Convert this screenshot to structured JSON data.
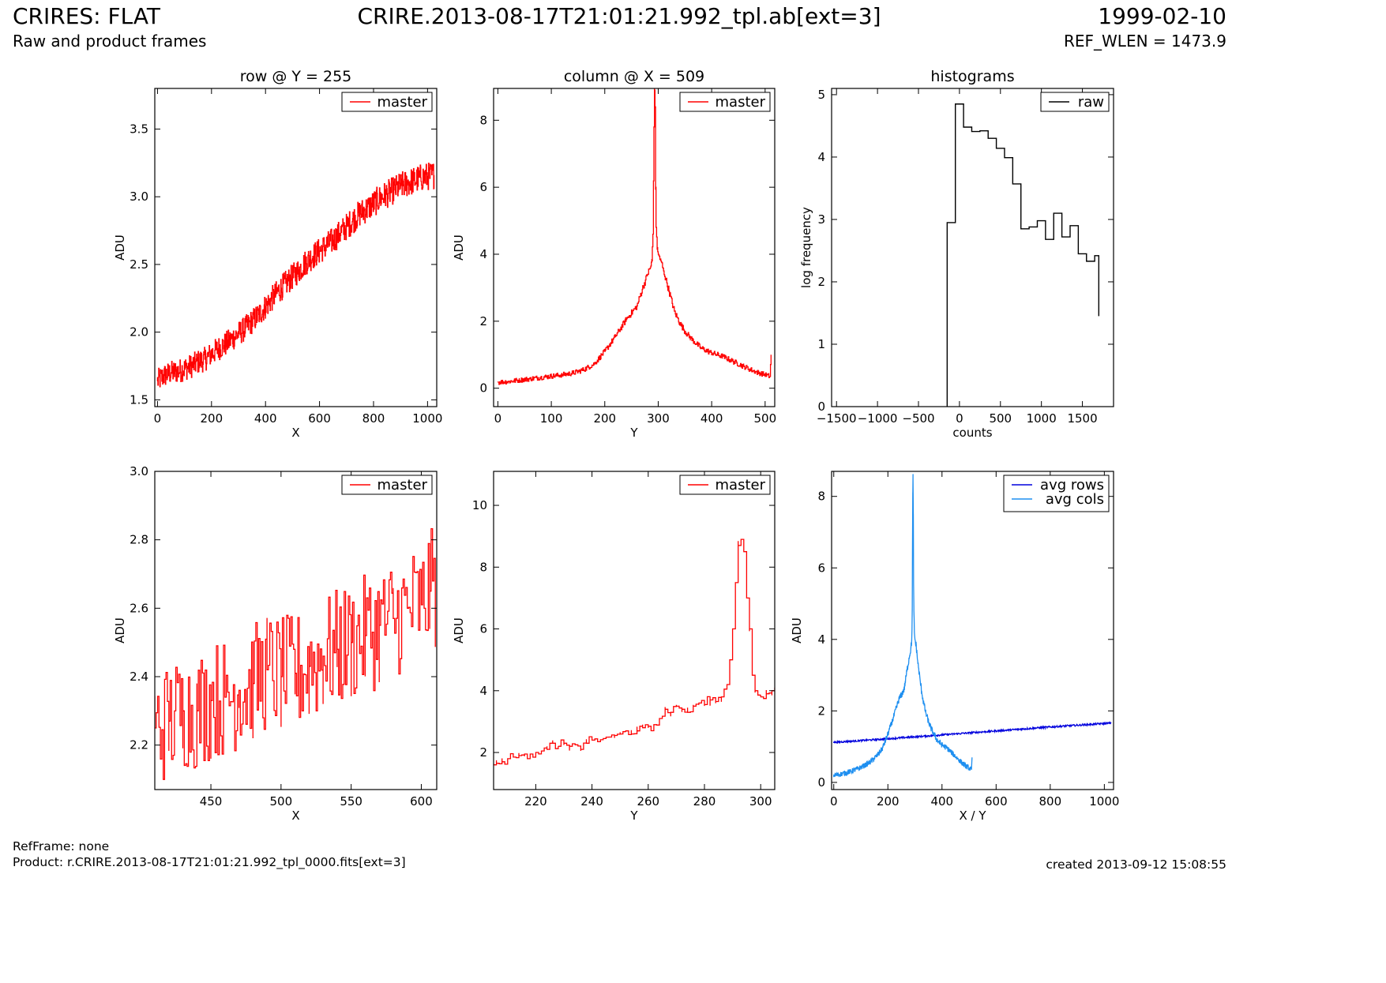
{
  "header": {
    "left_title": "CRIRES: FLAT",
    "left_subtitle": "Raw and product frames",
    "center_title": "CRIRE.2013-08-17T21:01:21.992_tpl.ab[ext=3]",
    "right_title": "1999-02-10",
    "right_subtitle": "REF_WLEN = 1473.9"
  },
  "footer": {
    "ref_frame": "RefFrame: none",
    "product": "Product: r.CRIRE.2013-08-17T21:01:21.992_tpl_0000.fits[ext=3]",
    "created": "created 2013-09-12 15:08:55"
  },
  "colors": {
    "master": "#ff0000",
    "raw": "#000000",
    "avg_rows": "#0000dd",
    "avg_cols": "#1e8ff0"
  },
  "chart_data": [
    {
      "id": "row",
      "type": "line",
      "title": "row @ Y = 255",
      "xlabel": "X",
      "ylabel": "ADU",
      "xlim": [
        -10,
        1034
      ],
      "ylim": [
        1.45,
        3.8
      ],
      "xticks": [
        0,
        200,
        400,
        600,
        800,
        1000
      ],
      "yticks": [
        1.5,
        2.0,
        2.5,
        3.0,
        3.5
      ],
      "ytick_labels": [
        "1.5",
        "2.0",
        "2.5",
        "3.0",
        "3.5"
      ],
      "legend": "top-right",
      "series": [
        {
          "name": "master",
          "color": "#ff0000",
          "step": true,
          "x": [
            0,
            25,
            50,
            75,
            100,
            125,
            150,
            175,
            200,
            225,
            250,
            275,
            300,
            325,
            350,
            375,
            400,
            425,
            450,
            475,
            500,
            525,
            550,
            575,
            600,
            625,
            650,
            675,
            700,
            725,
            750,
            775,
            800,
            825,
            850,
            875,
            900,
            925,
            950,
            975,
            1000,
            1024
          ],
          "y": [
            1.64,
            1.68,
            1.7,
            1.71,
            1.73,
            1.75,
            1.78,
            1.8,
            1.84,
            1.88,
            1.91,
            1.95,
            1.99,
            2.03,
            2.08,
            2.13,
            2.19,
            2.25,
            2.31,
            2.36,
            2.41,
            2.46,
            2.52,
            2.56,
            2.6,
            2.64,
            2.68,
            2.73,
            2.78,
            2.83,
            2.88,
            2.91,
            2.95,
            2.99,
            3.02,
            3.05,
            3.08,
            3.1,
            3.12,
            3.14,
            3.15,
            3.16
          ],
          "noise": 0.07
        }
      ]
    },
    {
      "id": "column",
      "type": "line",
      "title": "column @ X = 509",
      "xlabel": "Y",
      "ylabel": "ADU",
      "xlim": [
        -8,
        518
      ],
      "ylim": [
        -0.55,
        8.95
      ],
      "xticks": [
        0,
        100,
        200,
        300,
        400,
        500
      ],
      "yticks": [
        0,
        2,
        4,
        6,
        8
      ],
      "legend": "top-right",
      "series": [
        {
          "name": "master",
          "color": "#ff0000",
          "step": true,
          "x": [
            0,
            20,
            40,
            60,
            80,
            100,
            120,
            140,
            160,
            180,
            200,
            220,
            240,
            260,
            270,
            280,
            285,
            288,
            290,
            292,
            293,
            294,
            295,
            296,
            298,
            300,
            305,
            310,
            320,
            330,
            340,
            350,
            360,
            380,
            400,
            420,
            440,
            460,
            480,
            500,
            509,
            511
          ],
          "y": [
            0.18,
            0.2,
            0.24,
            0.28,
            0.32,
            0.36,
            0.4,
            0.45,
            0.55,
            0.72,
            1.1,
            1.55,
            2.05,
            2.45,
            2.95,
            3.4,
            3.6,
            3.8,
            4.6,
            7.8,
            8.9,
            8.4,
            6.0,
            4.8,
            4.2,
            4.0,
            3.8,
            3.5,
            2.9,
            2.3,
            1.95,
            1.7,
            1.5,
            1.2,
            1.05,
            0.95,
            0.8,
            0.65,
            0.5,
            0.4,
            0.35,
            1.0
          ],
          "noise": 0.07
        }
      ]
    },
    {
      "id": "hist",
      "type": "bar",
      "title": "histograms",
      "xlabel": "counts",
      "ylabel": "log frequency",
      "xlim": [
        -1560,
        1880
      ],
      "ylim": [
        0,
        5.1
      ],
      "xticks": [
        -1500,
        -1000,
        -500,
        0,
        500,
        1000,
        1500
      ],
      "xtick_labels": [
        "−1500",
        "−1000",
        "−500",
        "0",
        "500",
        "1000",
        "1500"
      ],
      "yticks": [
        0,
        1,
        2,
        3,
        4,
        5
      ],
      "legend": "top-right",
      "series": [
        {
          "name": "raw",
          "color": "#000000",
          "bin_edges": [
            -150,
            -50,
            50,
            150,
            250,
            350,
            450,
            550,
            650,
            750,
            850,
            950,
            1050,
            1150,
            1250,
            1350,
            1450,
            1550,
            1650,
            1700
          ],
          "values": [
            2.95,
            4.85,
            4.48,
            4.41,
            4.42,
            4.3,
            4.14,
            3.99,
            3.57,
            2.85,
            2.88,
            2.98,
            2.68,
            3.1,
            2.72,
            2.9,
            2.45,
            2.33,
            2.42,
            1.45
          ]
        }
      ]
    },
    {
      "id": "row-zoom",
      "type": "line",
      "title": "",
      "xlabel": "X",
      "ylabel": "ADU",
      "xlim": [
        410,
        611
      ],
      "ylim": [
        2.07,
        3.0
      ],
      "xticks": [
        450,
        500,
        550,
        600
      ],
      "yticks": [
        2.2,
        2.4,
        2.6,
        2.8,
        3.0
      ],
      "ytick_labels": [
        "2.2",
        "2.4",
        "2.6",
        "2.8",
        "3.0"
      ],
      "legend": "top-right",
      "series": [
        {
          "name": "master",
          "color": "#ff0000",
          "step": true,
          "x": [
            410,
            420,
            430,
            440,
            450,
            460,
            470,
            480,
            490,
            500,
            510,
            520,
            530,
            540,
            550,
            560,
            570,
            580,
            590,
            600,
            606,
            610
          ],
          "y": [
            2.25,
            2.27,
            2.3,
            2.3,
            2.33,
            2.34,
            2.36,
            2.38,
            2.42,
            2.4,
            2.41,
            2.43,
            2.46,
            2.48,
            2.5,
            2.52,
            2.55,
            2.57,
            2.6,
            2.61,
            2.65,
            2.66
          ],
          "noise": 0.13
        }
      ]
    },
    {
      "id": "column-zoom",
      "type": "line",
      "title": "",
      "xlabel": "Y",
      "ylabel": "ADU",
      "xlim": [
        205,
        305
      ],
      "ylim": [
        0.8,
        11.1
      ],
      "xticks": [
        220,
        240,
        260,
        280,
        300
      ],
      "yticks": [
        2,
        4,
        6,
        8,
        10
      ],
      "legend": "top-right",
      "series": [
        {
          "name": "master",
          "color": "#ff0000",
          "step": true,
          "x": [
            205,
            206,
            208,
            210,
            212,
            214,
            216,
            218,
            220,
            222,
            224,
            226,
            228,
            230,
            232,
            234,
            236,
            238,
            240,
            242,
            244,
            246,
            248,
            250,
            252,
            254,
            256,
            258,
            260,
            262,
            264,
            266,
            268,
            270,
            272,
            274,
            276,
            278,
            280,
            282,
            284,
            286,
            288,
            289,
            290,
            291,
            292,
            293,
            294,
            295,
            296,
            297,
            298,
            300,
            302,
            304,
            305
          ],
          "y": [
            1.6,
            1.65,
            1.7,
            1.8,
            1.85,
            1.9,
            1.95,
            1.95,
            2.0,
            2.05,
            2.1,
            2.3,
            2.2,
            2.3,
            2.2,
            2.25,
            2.1,
            2.3,
            2.4,
            2.35,
            2.45,
            2.5,
            2.55,
            2.6,
            2.7,
            2.6,
            2.7,
            2.8,
            2.85,
            2.9,
            3.1,
            3.4,
            3.3,
            3.5,
            3.4,
            3.3,
            3.5,
            3.6,
            3.55,
            3.7,
            3.65,
            3.8,
            4.2,
            5.0,
            6.0,
            7.5,
            8.7,
            8.9,
            8.5,
            7.0,
            6.0,
            4.5,
            4.0,
            3.8,
            3.9,
            4.0,
            4.1
          ],
          "noise": 0.12
        }
      ]
    },
    {
      "id": "averages",
      "type": "line",
      "title": "",
      "xlabel": "X / Y",
      "ylabel": "ADU",
      "xlim": [
        -8,
        1034
      ],
      "ylim": [
        -0.2,
        8.7
      ],
      "xticks": [
        0,
        200,
        400,
        600,
        800,
        1000
      ],
      "yticks": [
        0,
        2,
        4,
        6,
        8
      ],
      "legend": "top-right",
      "series": [
        {
          "name": "avg rows",
          "color": "#0000dd",
          "step": false,
          "x": [
            0,
            200,
            400,
            600,
            800,
            1024
          ],
          "y": [
            1.12,
            1.22,
            1.33,
            1.44,
            1.55,
            1.66
          ],
          "noise": 0.02
        },
        {
          "name": "avg cols",
          "color": "#1e8ff0",
          "step": false,
          "x": [
            0,
            20,
            40,
            60,
            80,
            100,
            120,
            140,
            160,
            180,
            200,
            220,
            240,
            260,
            270,
            280,
            285,
            288,
            290,
            292,
            293,
            294,
            295,
            296,
            298,
            300,
            305,
            310,
            320,
            330,
            340,
            350,
            360,
            380,
            400,
            420,
            440,
            460,
            480,
            500,
            509,
            511
          ],
          "y": [
            0.2,
            0.22,
            0.26,
            0.3,
            0.36,
            0.42,
            0.5,
            0.6,
            0.75,
            0.95,
            1.35,
            1.8,
            2.3,
            2.6,
            3.1,
            3.55,
            3.75,
            3.95,
            4.8,
            8.0,
            8.5,
            7.5,
            5.6,
            4.8,
            4.2,
            4.0,
            3.8,
            3.4,
            2.8,
            2.3,
            1.95,
            1.7,
            1.5,
            1.2,
            1.05,
            0.95,
            0.8,
            0.65,
            0.5,
            0.4,
            0.35,
            0.7
          ],
          "noise": 0.07
        }
      ]
    }
  ]
}
